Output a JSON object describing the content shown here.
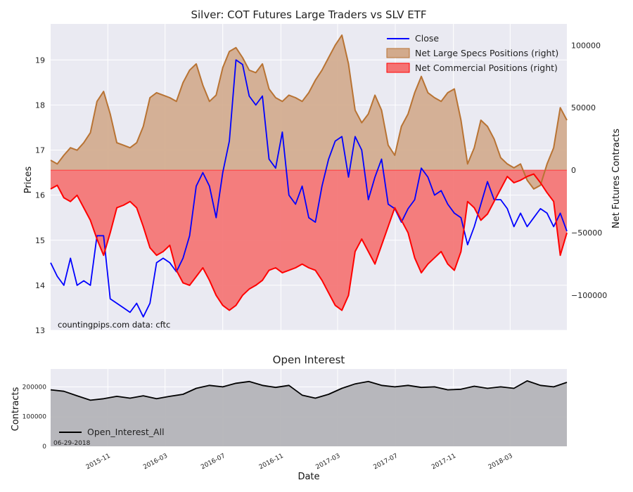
{
  "chart_data": [
    {
      "type": "line",
      "title": "Silver: COT Futures Large Traders vs SLV ETF",
      "ylabel": "Prices",
      "ylabel_right": "Net Futures Contracts",
      "ylim": [
        13,
        19.8
      ],
      "ylim_right": [
        -128000,
        117000
      ],
      "y_ticks": [
        13,
        14,
        15,
        16,
        17,
        18,
        19
      ],
      "y_ticks_right": [
        -100000,
        -50000,
        0,
        50000,
        100000
      ],
      "x_range": [
        "2015-07-03",
        "2018-06-29"
      ],
      "grid": true,
      "legend_position": "top-right",
      "annotation": "countingpips.com    data: cftc",
      "series": [
        {
          "name": "Close",
          "axis": "left",
          "color": "#0000ff",
          "dates": [
            "2015-07-03",
            "2015-07-17",
            "2015-07-31",
            "2015-08-14",
            "2015-08-28",
            "2015-09-11",
            "2015-09-25",
            "2015-10-09",
            "2015-10-23",
            "2015-11-06",
            "2015-11-20",
            "2015-12-04",
            "2015-12-18",
            "2016-01-01",
            "2016-01-15",
            "2016-01-29",
            "2016-02-12",
            "2016-02-26",
            "2016-03-11",
            "2016-03-25",
            "2016-04-08",
            "2016-04-22",
            "2016-05-06",
            "2016-05-20",
            "2016-06-03",
            "2016-06-17",
            "2016-07-01",
            "2016-07-15",
            "2016-07-29",
            "2016-08-12",
            "2016-08-26",
            "2016-09-09",
            "2016-09-23",
            "2016-10-07",
            "2016-10-21",
            "2016-11-04",
            "2016-11-18",
            "2016-12-02",
            "2016-12-16",
            "2016-12-30",
            "2017-01-13",
            "2017-01-27",
            "2017-02-10",
            "2017-02-24",
            "2017-03-10",
            "2017-03-24",
            "2017-04-07",
            "2017-04-21",
            "2017-05-05",
            "2017-05-19",
            "2017-06-02",
            "2017-06-16",
            "2017-06-30",
            "2017-07-14",
            "2017-07-28",
            "2017-08-11",
            "2017-08-25",
            "2017-09-08",
            "2017-09-22",
            "2017-10-06",
            "2017-10-20",
            "2017-11-03",
            "2017-11-17",
            "2017-12-01",
            "2017-12-15",
            "2017-12-29",
            "2018-01-12",
            "2018-01-26",
            "2018-02-09",
            "2018-02-23",
            "2018-03-09",
            "2018-03-23",
            "2018-04-06",
            "2018-04-20",
            "2018-05-04",
            "2018-05-18",
            "2018-06-01",
            "2018-06-15",
            "2018-06-29"
          ],
          "values": [
            14.5,
            14.2,
            14.0,
            14.6,
            14.0,
            14.1,
            14.0,
            15.1,
            15.1,
            13.7,
            13.6,
            13.5,
            13.4,
            13.6,
            13.3,
            13.6,
            14.5,
            14.6,
            14.5,
            14.3,
            14.6,
            15.1,
            16.2,
            16.5,
            16.2,
            15.5,
            16.5,
            17.2,
            19.0,
            18.9,
            18.2,
            18.0,
            18.2,
            16.8,
            16.6,
            17.4,
            16.0,
            15.8,
            16.2,
            15.5,
            15.4,
            16.2,
            16.8,
            17.2,
            17.3,
            16.4,
            17.3,
            17.0,
            15.9,
            16.4,
            16.8,
            15.8,
            15.7,
            15.4,
            15.7,
            15.9,
            16.6,
            16.4,
            16.0,
            16.1,
            15.8,
            15.6,
            15.5,
            14.9,
            15.3,
            15.8,
            16.3,
            15.9,
            15.9,
            15.7,
            15.3,
            15.6,
            15.3,
            15.5,
            15.7,
            15.6,
            15.3,
            15.6,
            15.2
          ]
        },
        {
          "name": "Net Large Specs Positions (right)",
          "axis": "right",
          "color": "#b87333",
          "fill": "#d2aa8c",
          "dates": [
            "2015-07-03",
            "2015-07-17",
            "2015-07-31",
            "2015-08-14",
            "2015-08-28",
            "2015-09-11",
            "2015-09-25",
            "2015-10-09",
            "2015-10-23",
            "2015-11-06",
            "2015-11-20",
            "2015-12-04",
            "2015-12-18",
            "2016-01-01",
            "2016-01-15",
            "2016-01-29",
            "2016-02-12",
            "2016-02-26",
            "2016-03-11",
            "2016-03-25",
            "2016-04-08",
            "2016-04-22",
            "2016-05-06",
            "2016-05-20",
            "2016-06-03",
            "2016-06-17",
            "2016-07-01",
            "2016-07-15",
            "2016-07-29",
            "2016-08-12",
            "2016-08-26",
            "2016-09-09",
            "2016-09-23",
            "2016-10-07",
            "2016-10-21",
            "2016-11-04",
            "2016-11-18",
            "2016-12-02",
            "2016-12-16",
            "2016-12-30",
            "2017-01-13",
            "2017-01-27",
            "2017-02-10",
            "2017-02-24",
            "2017-03-10",
            "2017-03-24",
            "2017-04-07",
            "2017-04-21",
            "2017-05-05",
            "2017-05-19",
            "2017-06-02",
            "2017-06-16",
            "2017-06-30",
            "2017-07-14",
            "2017-07-28",
            "2017-08-11",
            "2017-08-25",
            "2017-09-08",
            "2017-09-22",
            "2017-10-06",
            "2017-10-20",
            "2017-11-03",
            "2017-11-17",
            "2017-12-01",
            "2017-12-15",
            "2017-12-29",
            "2018-01-12",
            "2018-01-26",
            "2018-02-09",
            "2018-02-23",
            "2018-03-09",
            "2018-03-23",
            "2018-04-06",
            "2018-04-20",
            "2018-05-04",
            "2018-05-18",
            "2018-06-01",
            "2018-06-15",
            "2018-06-29"
          ],
          "values": [
            8000,
            5000,
            12000,
            18000,
            16000,
            22000,
            30000,
            55000,
            63000,
            45000,
            22000,
            20000,
            18000,
            22000,
            35000,
            58000,
            62000,
            60000,
            58000,
            55000,
            70000,
            80000,
            85000,
            68000,
            55000,
            60000,
            82000,
            95000,
            98000,
            90000,
            80000,
            78000,
            85000,
            65000,
            58000,
            55000,
            60000,
            58000,
            55000,
            62000,
            72000,
            80000,
            90000,
            100000,
            108000,
            85000,
            48000,
            38000,
            45000,
            60000,
            48000,
            20000,
            12000,
            35000,
            45000,
            62000,
            75000,
            62000,
            58000,
            55000,
            62000,
            65000,
            40000,
            5000,
            18000,
            40000,
            35000,
            25000,
            10000,
            5000,
            2000,
            5000,
            -8000,
            -15000,
            -12000,
            5000,
            18000,
            50000,
            40000
          ]
        },
        {
          "name": "Net Commercial Positions (right)",
          "axis": "right",
          "color": "#ff0000",
          "fill": "#f47373",
          "dates": [
            "2015-07-03",
            "2015-07-17",
            "2015-07-31",
            "2015-08-14",
            "2015-08-28",
            "2015-09-11",
            "2015-09-25",
            "2015-10-09",
            "2015-10-23",
            "2015-11-06",
            "2015-11-20",
            "2015-12-04",
            "2015-12-18",
            "2016-01-01",
            "2016-01-15",
            "2016-01-29",
            "2016-02-12",
            "2016-02-26",
            "2016-03-11",
            "2016-03-25",
            "2016-04-08",
            "2016-04-22",
            "2016-05-06",
            "2016-05-20",
            "2016-06-03",
            "2016-06-17",
            "2016-07-01",
            "2016-07-15",
            "2016-07-29",
            "2016-08-12",
            "2016-08-26",
            "2016-09-09",
            "2016-09-23",
            "2016-10-07",
            "2016-10-21",
            "2016-11-04",
            "2016-11-18",
            "2016-12-02",
            "2016-12-16",
            "2016-12-30",
            "2017-01-13",
            "2017-01-27",
            "2017-02-10",
            "2017-02-24",
            "2017-03-10",
            "2017-03-24",
            "2017-04-07",
            "2017-04-21",
            "2017-05-05",
            "2017-05-19",
            "2017-06-02",
            "2017-06-16",
            "2017-06-30",
            "2017-07-14",
            "2017-07-28",
            "2017-08-11",
            "2017-08-25",
            "2017-09-08",
            "2017-09-22",
            "2017-10-06",
            "2017-10-20",
            "2017-11-03",
            "2017-11-17",
            "2017-12-01",
            "2017-12-15",
            "2017-12-29",
            "2018-01-12",
            "2018-01-26",
            "2018-02-09",
            "2018-02-23",
            "2018-03-09",
            "2018-03-23",
            "2018-04-06",
            "2018-04-20",
            "2018-05-04",
            "2018-05-18",
            "2018-06-01",
            "2018-06-15",
            "2018-06-29"
          ],
          "values": [
            -15000,
            -12000,
            -22000,
            -25000,
            -20000,
            -30000,
            -40000,
            -55000,
            -68000,
            -50000,
            -30000,
            -28000,
            -25000,
            -30000,
            -45000,
            -62000,
            -68000,
            -65000,
            -60000,
            -80000,
            -90000,
            -92000,
            -85000,
            -78000,
            -88000,
            -100000,
            -108000,
            -112000,
            -108000,
            -100000,
            -95000,
            -92000,
            -88000,
            -80000,
            -78000,
            -82000,
            -80000,
            -78000,
            -75000,
            -78000,
            -80000,
            -88000,
            -98000,
            -108000,
            -112000,
            -100000,
            -65000,
            -55000,
            -65000,
            -75000,
            -60000,
            -45000,
            -30000,
            -40000,
            -50000,
            -70000,
            -82000,
            -75000,
            -70000,
            -65000,
            -75000,
            -80000,
            -65000,
            -25000,
            -30000,
            -40000,
            -35000,
            -25000,
            -15000,
            -5000,
            -10000,
            -8000,
            -5000,
            -3000,
            -10000,
            -18000,
            -25000,
            -68000,
            -50000
          ]
        }
      ]
    },
    {
      "type": "area",
      "title": "Open Interest",
      "xlabel": "Date",
      "ylabel": "Contracts",
      "ylim": [
        0,
        260000
      ],
      "y_ticks": [
        0,
        100000,
        200000
      ],
      "x_ticks": [
        "2015-11",
        "2016-03",
        "2016-07",
        "2016-11",
        "2017-03",
        "2017-07",
        "2017-11",
        "2018-03"
      ],
      "grid": true,
      "legend_position": "bottom-left",
      "date_label": "06-29-2018",
      "series": [
        {
          "name": "Open_Interest_All",
          "color": "#000000",
          "fill": "#b4b4b8",
          "dates": [
            "2015-07-03",
            "2015-07-31",
            "2015-08-28",
            "2015-09-25",
            "2015-10-23",
            "2015-11-20",
            "2015-12-18",
            "2016-01-15",
            "2016-02-12",
            "2016-03-11",
            "2016-04-08",
            "2016-05-06",
            "2016-06-03",
            "2016-07-01",
            "2016-07-29",
            "2016-08-26",
            "2016-09-23",
            "2016-10-21",
            "2016-11-18",
            "2016-12-16",
            "2017-01-13",
            "2017-02-10",
            "2017-03-10",
            "2017-04-07",
            "2017-05-05",
            "2017-06-02",
            "2017-06-30",
            "2017-07-28",
            "2017-08-25",
            "2017-09-22",
            "2017-10-20",
            "2017-11-17",
            "2017-12-15",
            "2018-01-12",
            "2018-02-09",
            "2018-03-09",
            "2018-04-06",
            "2018-05-04",
            "2018-06-01",
            "2018-06-29"
          ],
          "values": [
            190000,
            185000,
            170000,
            155000,
            160000,
            168000,
            162000,
            170000,
            160000,
            168000,
            175000,
            195000,
            205000,
            200000,
            212000,
            218000,
            205000,
            198000,
            205000,
            172000,
            162000,
            175000,
            195000,
            210000,
            218000,
            205000,
            200000,
            205000,
            198000,
            200000,
            190000,
            192000,
            202000,
            195000,
            200000,
            195000,
            220000,
            205000,
            200000,
            215000
          ]
        }
      ]
    }
  ]
}
